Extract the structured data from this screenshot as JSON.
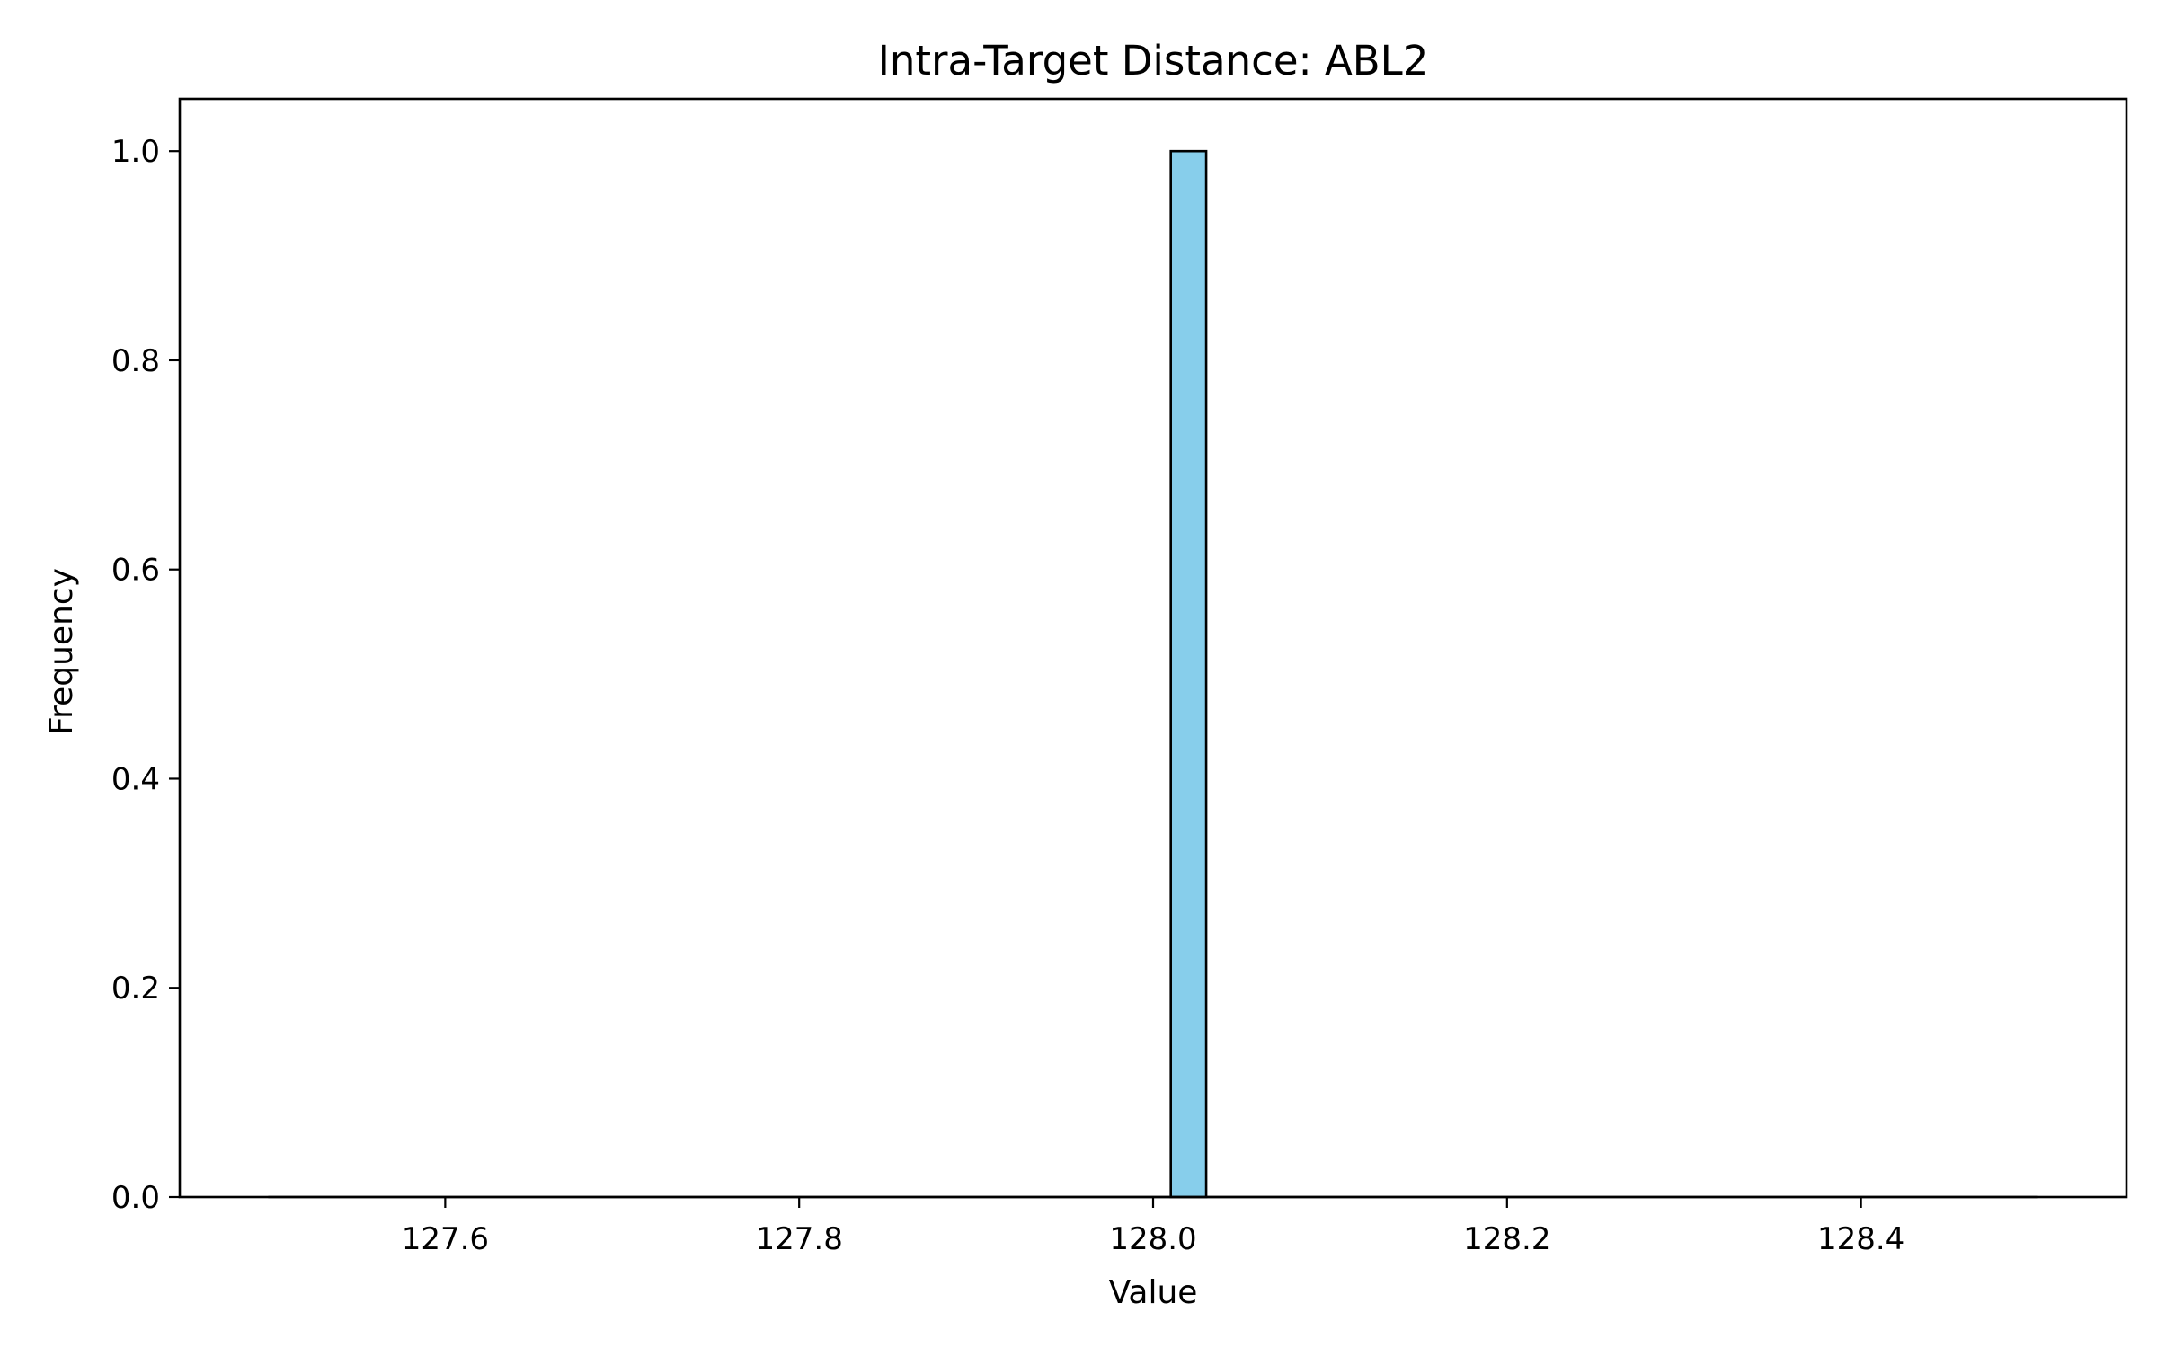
{
  "chart_data": {
    "type": "bar",
    "title": "Intra-Target Distance: ABL2",
    "xlabel": "Value",
    "ylabel": "Frequency",
    "xlim": [
      127.45,
      128.55
    ],
    "ylim": [
      0,
      1.05
    ],
    "hist_range": [
      127.5,
      128.5
    ],
    "bin_count": 50,
    "xticks": [
      127.6,
      127.8,
      128.0,
      128.2,
      128.4
    ],
    "xtick_labels": [
      "127.6",
      "127.8",
      "128.0",
      "128.2",
      "128.4"
    ],
    "yticks": [
      0.0,
      0.2,
      0.4,
      0.6,
      0.8,
      1.0
    ],
    "ytick_labels": [
      "0.0",
      "0.2",
      "0.4",
      "0.6",
      "0.8",
      "1.0"
    ],
    "bars": [
      {
        "x_start": 128.01,
        "x_end": 128.03,
        "value": 1
      }
    ],
    "bar_color": "#87CEEB",
    "edge_color": "#000000",
    "grid": false,
    "legend": "none"
  }
}
